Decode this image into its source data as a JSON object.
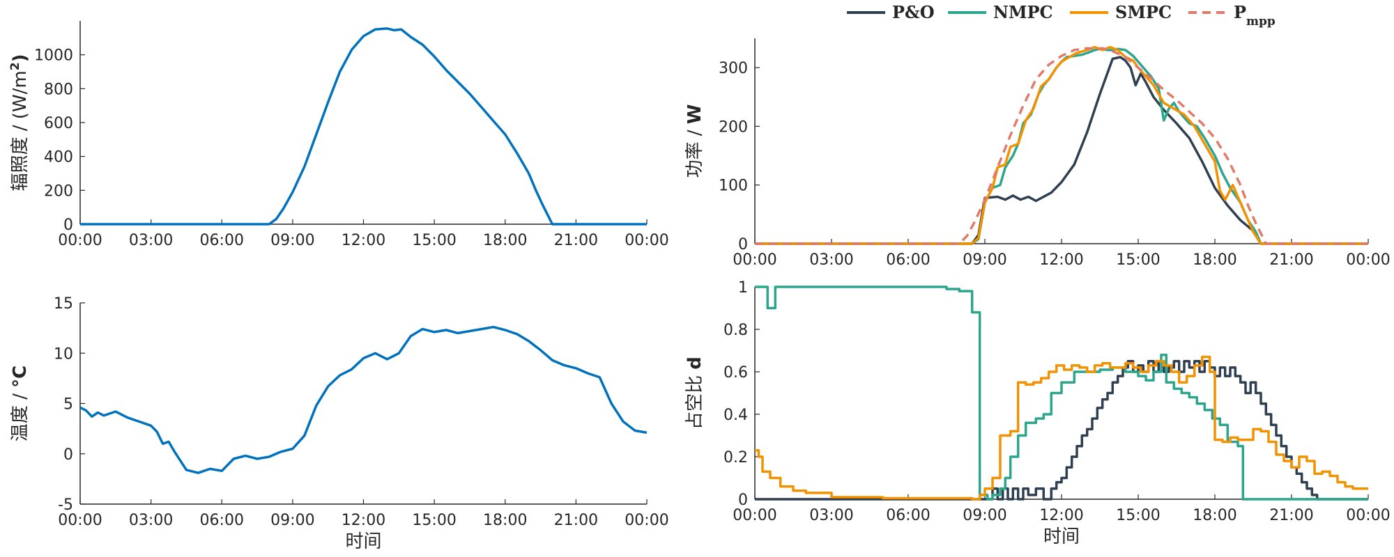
{
  "chart_data": [
    {
      "type": "line",
      "ylabel": "辐照度 / (W/m²)",
      "ylabel_parts": {
        "main": "辐照度 / (W/m",
        "sup": "2",
        "end": ")"
      },
      "xlabel": "",
      "xticks": [
        "00:00",
        "03:00",
        "06:00",
        "09:00",
        "12:00",
        "15:00",
        "18:00",
        "21:00",
        "00:00"
      ],
      "ylim": [
        0,
        1200
      ],
      "yticks": [
        0,
        200,
        400,
        600,
        800,
        1000
      ],
      "series": [
        {
          "color": "#0072BD",
          "x": [
            0,
            8,
            8.3,
            8.6,
            9,
            9.5,
            10,
            10.5,
            11,
            11.5,
            12,
            12.5,
            13,
            13.3,
            13.6,
            14,
            14.5,
            15,
            15.5,
            16,
            16.5,
            17,
            17.5,
            18,
            18.5,
            19,
            19.3,
            19.6,
            20,
            24
          ],
          "y": [
            0,
            0,
            30,
            90,
            190,
            340,
            530,
            720,
            900,
            1030,
            1110,
            1150,
            1155,
            1145,
            1150,
            1105,
            1060,
            990,
            910,
            840,
            770,
            690,
            610,
            530,
            420,
            300,
            200,
            110,
            0,
            0
          ]
        }
      ]
    },
    {
      "type": "line",
      "ylabel": "温度 / °C",
      "ylabel_parts": {
        "main": "温度 / ",
        "unit": "°C"
      },
      "xlabel": "时间",
      "xticks": [
        "00:00",
        "03:00",
        "06:00",
        "09:00",
        "12:00",
        "15:00",
        "18:00",
        "21:00",
        "00:00"
      ],
      "ylim": [
        -5,
        15
      ],
      "yticks": [
        -5,
        0,
        5,
        10,
        15
      ],
      "series": [
        {
          "color": "#0072BD",
          "x": [
            0,
            0.25,
            0.5,
            0.75,
            1,
            1.25,
            1.5,
            2,
            2.5,
            3,
            3.25,
            3.5,
            3.75,
            4,
            4.5,
            5,
            5.5,
            6,
            6.5,
            7,
            7.5,
            8,
            8.5,
            9,
            9.5,
            10,
            10.5,
            11,
            11.5,
            12,
            12.5,
            13,
            13.5,
            14,
            14.5,
            15,
            15.5,
            16,
            16.5,
            17,
            17.5,
            18,
            18.5,
            19,
            19.5,
            20,
            20.5,
            21,
            21.5,
            22,
            22.5,
            23,
            23.5,
            24
          ],
          "y": [
            4.6,
            4.3,
            3.7,
            4.1,
            3.8,
            4.0,
            4.2,
            3.6,
            3.2,
            2.8,
            2.2,
            1.0,
            1.2,
            0.2,
            -1.6,
            -1.9,
            -1.5,
            -1.7,
            -0.5,
            -0.2,
            -0.5,
            -0.3,
            0.2,
            0.5,
            1.8,
            4.8,
            6.7,
            7.8,
            8.4,
            9.5,
            10.0,
            9.4,
            10.0,
            11.7,
            12.4,
            12.1,
            12.3,
            12.0,
            12.2,
            12.4,
            12.6,
            12.3,
            11.9,
            11.2,
            10.3,
            9.3,
            8.8,
            8.5,
            8.0,
            7.6,
            5.0,
            3.2,
            2.3,
            2.1
          ]
        }
      ]
    },
    {
      "type": "line",
      "ylabel": "功率 / W",
      "ylabel_parts": {
        "main": "功率 / ",
        "unit": "W"
      },
      "xlabel": "",
      "xticks": [
        "00:00",
        "03:00",
        "06:00",
        "09:00",
        "12:00",
        "15:00",
        "18:00",
        "21:00",
        "00:00"
      ],
      "ylim": [
        0,
        350
      ],
      "yticks": [
        0,
        100,
        200,
        300
      ],
      "legend_position": "top",
      "legend": [
        "P&O",
        "NMPC",
        "SMPC",
        "Pmpp"
      ],
      "series": [
        {
          "name": "P&O",
          "color": "#2E3F52",
          "style": "solid",
          "x": [
            0,
            8.5,
            8.75,
            9,
            9.5,
            9.8,
            10.1,
            10.4,
            10.7,
            11,
            11.3,
            11.6,
            12,
            12.5,
            13,
            13.5,
            14,
            14.3,
            14.5,
            14.7,
            14.9,
            15.1,
            15.3,
            15.6,
            16,
            16.5,
            17,
            17.5,
            18,
            18.5,
            19,
            19.5,
            19.8,
            20,
            24
          ],
          "y": [
            0,
            0,
            15,
            78,
            80,
            75,
            82,
            75,
            80,
            73,
            80,
            87,
            105,
            135,
            190,
            255,
            315,
            318,
            312,
            300,
            270,
            290,
            275,
            250,
            228,
            205,
            180,
            140,
            95,
            65,
            40,
            22,
            0,
            0,
            0
          ]
        },
        {
          "name": "NMPC",
          "color": "#2CA58D",
          "style": "solid",
          "x": [
            0,
            8.5,
            8.75,
            9,
            9.3,
            9.6,
            9.8,
            10.1,
            10.3,
            10.5,
            10.8,
            11.1,
            11.3,
            11.5,
            11.8,
            12,
            12.2,
            12.5,
            12.8,
            13,
            13.3,
            13.5,
            13.8,
            14,
            14.2,
            14.5,
            14.8,
            15,
            15.2,
            15.5,
            15.8,
            16,
            16.2,
            16.4,
            16.6,
            16.8,
            17,
            17.3,
            17.6,
            18,
            18.3,
            18.6,
            19,
            19.3,
            19.6,
            19.8,
            20,
            24
          ],
          "y": [
            0,
            0,
            8,
            70,
            95,
            100,
            130,
            150,
            170,
            205,
            220,
            255,
            270,
            280,
            300,
            310,
            318,
            320,
            322,
            325,
            330,
            332,
            330,
            330,
            332,
            330,
            320,
            310,
            300,
            285,
            265,
            210,
            230,
            240,
            225,
            215,
            205,
            200,
            180,
            150,
            120,
            95,
            70,
            40,
            20,
            0,
            0,
            0
          ]
        },
        {
          "name": "SMPC",
          "color": "#F39200",
          "style": "solid",
          "x": [
            0,
            8.5,
            8.75,
            9,
            9.3,
            9.5,
            9.8,
            10,
            10.3,
            10.6,
            10.9,
            11.2,
            11.5,
            11.8,
            12,
            12.3,
            12.6,
            13,
            13.3,
            13.6,
            13.9,
            14.2,
            14.5,
            14.8,
            15,
            15.3,
            15.6,
            16,
            16.4,
            16.8,
            17.2,
            17.6,
            18,
            18.2,
            18.4,
            18.7,
            19,
            19.3,
            19.5,
            19.8,
            20,
            24
          ],
          "y": [
            0,
            0,
            10,
            70,
            95,
            130,
            135,
            165,
            170,
            210,
            230,
            268,
            280,
            300,
            310,
            318,
            325,
            330,
            335,
            330,
            335,
            330,
            318,
            312,
            300,
            285,
            270,
            240,
            230,
            220,
            200,
            170,
            140,
            90,
            75,
            100,
            70,
            40,
            20,
            0,
            0,
            0
          ]
        },
        {
          "name": "Pmpp",
          "color": "#E07B6A",
          "style": "dashed",
          "x": [
            0,
            8,
            8.3,
            8.6,
            9,
            9.5,
            10,
            10.5,
            11,
            11.5,
            12,
            12.5,
            13,
            13.3,
            13.6,
            14,
            14.5,
            15,
            15.5,
            16,
            16.5,
            17,
            17.5,
            18,
            18.5,
            19,
            19.3,
            19.6,
            20,
            24
          ],
          "y": [
            0,
            0,
            13,
            37,
            75,
            130,
            185,
            235,
            280,
            305,
            320,
            330,
            333,
            332,
            333,
            328,
            318,
            300,
            282,
            262,
            245,
            225,
            205,
            180,
            145,
            100,
            65,
            35,
            0,
            0
          ]
        }
      ]
    },
    {
      "type": "line",
      "ylabel": "占空比 d",
      "ylabel_parts": {
        "main": "占空比 ",
        "unit": "d"
      },
      "xlabel": "时间",
      "xticks": [
        "00:00",
        "03:00",
        "06:00",
        "09:00",
        "12:00",
        "15:00",
        "18:00",
        "21:00",
        "00:00"
      ],
      "ylim": [
        0,
        1
      ],
      "yticks": [
        0,
        0.2,
        0.4,
        0.6,
        0.8,
        1
      ],
      "series": [
        {
          "name": "P&O",
          "color": "#2E3F52",
          "step": true,
          "x": [
            0,
            9.3,
            9.5,
            9.7,
            9.9,
            10.1,
            10.3,
            10.5,
            10.7,
            11,
            11.3,
            11.6,
            11.8,
            12,
            12.2,
            12.4,
            12.6,
            12.8,
            13,
            13.2,
            13.4,
            13.6,
            13.8,
            14,
            14.2,
            14.4,
            14.6,
            14.8,
            15,
            15.2,
            15.4,
            15.6,
            15.8,
            16,
            16.2,
            16.4,
            16.6,
            16.8,
            17,
            17.2,
            17.4,
            17.6,
            17.8,
            18,
            18.2,
            18.4,
            18.6,
            18.8,
            19,
            19.2,
            19.4,
            19.6,
            19.8,
            20,
            20.2,
            20.4,
            20.6,
            20.8,
            21,
            21.2,
            21.4,
            21.6,
            21.8,
            22,
            24
          ],
          "y": [
            0,
            0.05,
            0,
            0.05,
            0,
            0.05,
            0,
            0.05,
            0.02,
            0.05,
            0,
            0.05,
            0.08,
            0.1,
            0.15,
            0.2,
            0.25,
            0.3,
            0.33,
            0.38,
            0.43,
            0.47,
            0.5,
            0.55,
            0.58,
            0.62,
            0.65,
            0.6,
            0.63,
            0.6,
            0.65,
            0.6,
            0.65,
            0.6,
            0.62,
            0.65,
            0.6,
            0.65,
            0.62,
            0.65,
            0.6,
            0.65,
            0.62,
            0.58,
            0.62,
            0.58,
            0.62,
            0.58,
            0.55,
            0.5,
            0.55,
            0.5,
            0.45,
            0.4,
            0.35,
            0.3,
            0.25,
            0.2,
            0.15,
            0.12,
            0.08,
            0.05,
            0.02,
            0,
            0
          ]
        },
        {
          "name": "NMPC",
          "color": "#2CA58D",
          "step": true,
          "x": [
            0,
            0.5,
            0.8,
            1,
            2,
            4,
            6,
            7,
            7.5,
            8,
            8.5,
            8.8,
            9.1,
            9.3,
            9.6,
            9.8,
            10,
            10.3,
            10.6,
            11,
            11.3,
            11.6,
            12,
            12.5,
            13,
            13.5,
            14,
            14.5,
            15,
            15.3,
            15.6,
            15.9,
            16.1,
            16.4,
            16.7,
            17,
            17.3,
            17.6,
            17.9,
            18.2,
            18.5,
            18.9,
            19.1,
            24
          ],
          "y": [
            1,
            0.9,
            1,
            1,
            1,
            1,
            1,
            1,
            0.99,
            0.98,
            0.88,
            0.02,
            0,
            0.02,
            0.05,
            0.1,
            0.2,
            0.3,
            0.36,
            0.38,
            0.4,
            0.5,
            0.55,
            0.6,
            0.6,
            0.61,
            0.62,
            0.6,
            0.58,
            0.56,
            0.6,
            0.68,
            0.55,
            0.52,
            0.5,
            0.48,
            0.45,
            0.42,
            0.38,
            0.35,
            0.27,
            0.25,
            0,
            0
          ]
        },
        {
          "name": "SMPC",
          "color": "#F39200",
          "step": true,
          "x": [
            0,
            0.15,
            0.3,
            0.6,
            1,
            1.5,
            2,
            3,
            5,
            7,
            8,
            8.5,
            8.8,
            9,
            9.3,
            9.6,
            9.9,
            10,
            10.3,
            10.6,
            10.9,
            11.2,
            11.5,
            11.8,
            12.1,
            12.4,
            12.7,
            13,
            13.3,
            13.6,
            13.9,
            14.2,
            14.5,
            14.8,
            15.1,
            15.4,
            15.7,
            16,
            16.3,
            16.6,
            16.9,
            17.2,
            17.5,
            17.8,
            18,
            18.3,
            18.6,
            18.9,
            19.2,
            19.5,
            19.8,
            20.1,
            20.4,
            20.7,
            21,
            21.3,
            21.6,
            21.9,
            22.2,
            22.5,
            22.8,
            23.1,
            23.4,
            23.7,
            24
          ],
          "y": [
            0.23,
            0.2,
            0.13,
            0.1,
            0.06,
            0.04,
            0.03,
            0.01,
            0.005,
            0.005,
            0.005,
            0,
            0.02,
            0.05,
            0.1,
            0.3,
            0.3,
            0.32,
            0.55,
            0.54,
            0.55,
            0.57,
            0.6,
            0.63,
            0.61,
            0.63,
            0.62,
            0.6,
            0.63,
            0.64,
            0.62,
            0.62,
            0.64,
            0.62,
            0.6,
            0.63,
            0.65,
            0.63,
            0.6,
            0.55,
            0.58,
            0.63,
            0.67,
            0.6,
            0.28,
            0.27,
            0.29,
            0.28,
            0.28,
            0.33,
            0.32,
            0.27,
            0.21,
            0.18,
            0.15,
            0.2,
            0.18,
            0.12,
            0.13,
            0.11,
            0.08,
            0.06,
            0.05,
            0.05,
            0.05
          ]
        }
      ]
    }
  ]
}
